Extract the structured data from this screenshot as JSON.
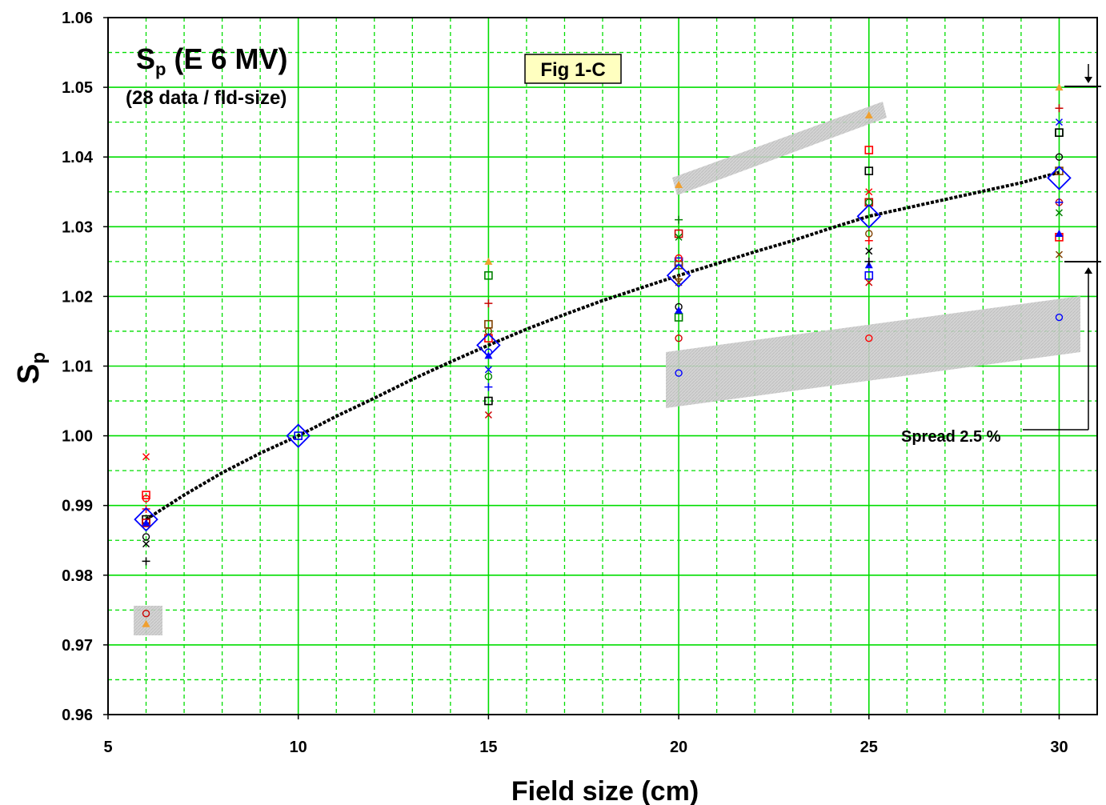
{
  "chart_data": {
    "type": "scatter",
    "title_main": "S",
    "title_sub": "p",
    "title_rest": " (E 6 MV)",
    "subtitle": "(28 data / fld-size)",
    "fig_label": "Fig 1-C",
    "xlabel": "Field size (cm)",
    "ylabel_main": "S",
    "ylabel_sub": "p",
    "xlim": [
      5,
      31
    ],
    "ylim": [
      0.96,
      1.06
    ],
    "x_ticks": [
      5,
      10,
      15,
      20,
      25,
      30
    ],
    "y_ticks": [
      "0.96",
      "0.97",
      "0.98",
      "0.99",
      "1.00",
      "1.01",
      "1.02",
      "1.03",
      "1.04",
      "1.05",
      "1.06"
    ],
    "grid": true,
    "spread_label": "Spread 2.5 %",
    "colors": {
      "major_grid": "#00dd00",
      "minor_grid": "#00cc00",
      "fit_line": "#000000",
      "mean_marker": "#0000ff",
      "highlight_band": "#c8c8c8",
      "fig_label_bg": "#ffffc0",
      "triangle_orange": "#f0a030"
    },
    "series": [
      {
        "name": "mean",
        "marker": "diamond",
        "x": [
          6,
          10,
          15,
          20,
          25,
          30
        ],
        "y": [
          0.988,
          1.0,
          1.013,
          1.023,
          1.0315,
          1.037
        ]
      },
      {
        "name": "fit",
        "marker": "line",
        "x": [
          6,
          7,
          8,
          9,
          10,
          11,
          12,
          13,
          14,
          15,
          16,
          17,
          18,
          19,
          20,
          21,
          22,
          23,
          24,
          25,
          26,
          27,
          28,
          29,
          30
        ],
        "y": [
          0.988,
          0.9915,
          0.9947,
          0.9975,
          1.0,
          1.0028,
          1.0054,
          1.0081,
          1.0106,
          1.013,
          1.0153,
          1.0174,
          1.0194,
          1.0212,
          1.023,
          1.0247,
          1.0264,
          1.028,
          1.0298,
          1.0315,
          1.0327,
          1.0339,
          1.0351,
          1.0363,
          1.0378
        ]
      },
      {
        "name": "squares",
        "marker": "square",
        "x": [
          6,
          6,
          6,
          10,
          15,
          15,
          15,
          15,
          20,
          20,
          20,
          20,
          25,
          25,
          25,
          25,
          30,
          30,
          30,
          30
        ],
        "y": [
          0.9915,
          0.988,
          0.9875,
          1.0,
          1.023,
          1.016,
          1.014,
          1.005,
          1.029,
          1.025,
          1.017,
          1.0245,
          1.041,
          1.038,
          1.0335,
          1.023,
          1.0435,
          1.038,
          1.0285,
          1.0435
        ]
      },
      {
        "name": "circles",
        "marker": "circle",
        "x": [
          6,
          6,
          6,
          15,
          15,
          15,
          20,
          20,
          20,
          20,
          25,
          25,
          25,
          30,
          30,
          30
        ],
        "y": [
          0.991,
          0.9855,
          0.9745,
          1.012,
          1.0085,
          1.015,
          1.0255,
          1.0185,
          1.014,
          1.009,
          1.0335,
          1.029,
          1.014,
          1.04,
          1.0335,
          1.017
        ],
        "hollow": true
      },
      {
        "name": "triangles",
        "marker": "triangle",
        "x": [
          6,
          15,
          20,
          25,
          30,
          6,
          15,
          20,
          25,
          30
        ],
        "y": [
          0.973,
          1.025,
          1.036,
          1.046,
          1.05,
          0.9875,
          1.0115,
          1.018,
          1.0245,
          1.029
        ],
        "fills": [
          "#f0a030",
          "#f0a030",
          "#f0a030",
          "#f0a030",
          "#f0a030",
          "#0000ff",
          "#0000ff",
          "#0000ff",
          "#0000ff",
          "#0000ff"
        ]
      },
      {
        "name": "crosses",
        "marker": "x",
        "x": [
          6,
          6,
          15,
          15,
          20,
          20,
          25,
          25,
          25,
          30,
          30,
          30
        ],
        "y": [
          0.997,
          0.9845,
          1.003,
          1.0095,
          1.0285,
          1.022,
          1.035,
          1.0265,
          1.022,
          1.045,
          1.032,
          1.026
        ]
      },
      {
        "name": "pluses",
        "marker": "plus",
        "x": [
          6,
          6,
          15,
          15,
          20,
          20,
          25,
          25,
          30,
          30
        ],
        "y": [
          0.9895,
          0.982,
          1.019,
          1.007,
          1.031,
          1.0225,
          1.028,
          1.025,
          1.047,
          1.0335
        ]
      }
    ]
  }
}
